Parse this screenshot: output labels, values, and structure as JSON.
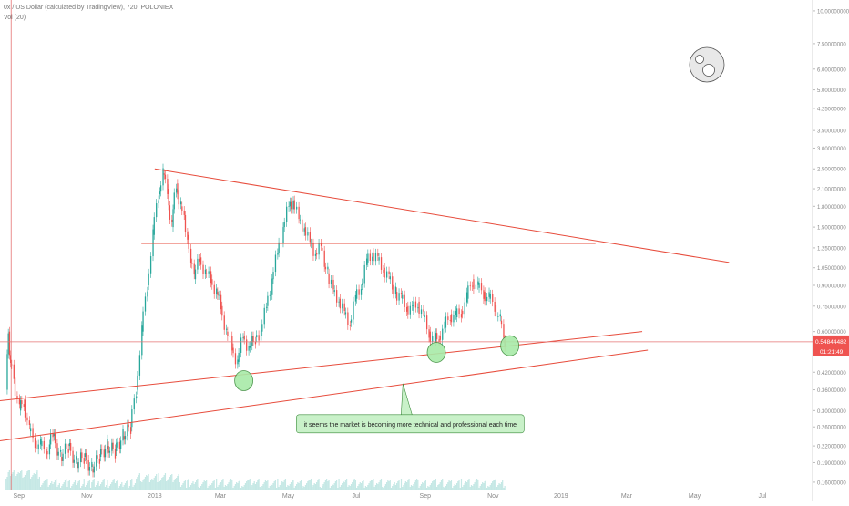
{
  "chart_data": {
    "type": "candlestick",
    "legend": {
      "symbol_line": "0x / US Dollar (calculated by TradingView), 720, POLONIEX",
      "volume_line": "Vol (20)"
    },
    "y_scale": "log",
    "ylim": [
      0.15,
      11
    ],
    "xlim": [
      "2017-08-15",
      "2019-08-15"
    ],
    "x_tick_labels": [
      {
        "date": "2017-09-01",
        "label": "Sep"
      },
      {
        "date": "2017-11-01",
        "label": "Nov"
      },
      {
        "date": "2018-01-01",
        "label": "2018"
      },
      {
        "date": "2018-03-01",
        "label": "Mar"
      },
      {
        "date": "2018-05-01",
        "label": "May"
      },
      {
        "date": "2018-07-01",
        "label": "Jul"
      },
      {
        "date": "2018-09-01",
        "label": "Sep"
      },
      {
        "date": "2018-11-01",
        "label": "Nov"
      },
      {
        "date": "2019-01-01",
        "label": "2019"
      },
      {
        "date": "2019-03-01",
        "label": "Mar"
      },
      {
        "date": "2019-05-01",
        "label": "May"
      },
      {
        "date": "2019-07-01",
        "label": "Jul"
      }
    ],
    "y_tick_labels": [
      {
        "value": 10,
        "label": "10.00000000"
      },
      {
        "value": 7.5,
        "label": "7.50000000"
      },
      {
        "value": 6,
        "label": "6.00000000"
      },
      {
        "value": 5,
        "label": "5.00000000"
      },
      {
        "value": 4.25,
        "label": "4.25000000"
      },
      {
        "value": 3.5,
        "label": "3.50000000"
      },
      {
        "value": 3,
        "label": "3.00000000"
      },
      {
        "value": 2.5,
        "label": "2.50000000"
      },
      {
        "value": 2.1,
        "label": "2.10000000"
      },
      {
        "value": 1.8,
        "label": "1.80000000"
      },
      {
        "value": 1.5,
        "label": "1.50000000"
      },
      {
        "value": 1.25,
        "label": "1.25000000"
      },
      {
        "value": 1.05,
        "label": "1.05000000"
      },
      {
        "value": 0.9,
        "label": "0.90000000"
      },
      {
        "value": 0.75,
        "label": "0.75000000"
      },
      {
        "value": 0.6,
        "label": "0.60000000"
      },
      {
        "value": 0.42,
        "label": "0.42000000"
      },
      {
        "value": 0.36,
        "label": "0.36000000"
      },
      {
        "value": 0.3,
        "label": "0.30000000"
      },
      {
        "value": 0.26,
        "label": "0.26000000"
      },
      {
        "value": 0.22,
        "label": "0.22000000"
      },
      {
        "value": 0.19,
        "label": "0.19000000"
      },
      {
        "value": 0.16,
        "label": "0.16000000"
      }
    ],
    "last_price": {
      "value": 0.54844482,
      "label": "0.54844482",
      "countdown": "01:21:49"
    },
    "crosshair": {
      "date": "2017-08-25",
      "price": 0.54844482
    },
    "price_path": [
      [
        "2017-08-20",
        0.36
      ],
      [
        "2017-08-22",
        0.6
      ],
      [
        "2017-08-24",
        0.45
      ],
      [
        "2017-08-27",
        0.4
      ],
      [
        "2017-09-01",
        0.3
      ],
      [
        "2017-09-05",
        0.33
      ],
      [
        "2017-09-10",
        0.25
      ],
      [
        "2017-09-15",
        0.23
      ],
      [
        "2017-09-20",
        0.22
      ],
      [
        "2017-09-25",
        0.21
      ],
      [
        "2017-10-01",
        0.24
      ],
      [
        "2017-10-08",
        0.2
      ],
      [
        "2017-10-15",
        0.22
      ],
      [
        "2017-10-22",
        0.19
      ],
      [
        "2017-10-29",
        0.2
      ],
      [
        "2017-11-05",
        0.18
      ],
      [
        "2017-11-12",
        0.2
      ],
      [
        "2017-11-19",
        0.22
      ],
      [
        "2017-11-26",
        0.21
      ],
      [
        "2017-12-03",
        0.24
      ],
      [
        "2017-12-10",
        0.26
      ],
      [
        "2017-12-15",
        0.36
      ],
      [
        "2017-12-20",
        0.6
      ],
      [
        "2017-12-25",
        0.9
      ],
      [
        "2017-12-30",
        1.4
      ],
      [
        "2018-01-04",
        2.0
      ],
      [
        "2018-01-08",
        2.4
      ],
      [
        "2018-01-12",
        2.1
      ],
      [
        "2018-01-16",
        1.5
      ],
      [
        "2018-01-20",
        2.2
      ],
      [
        "2018-01-24",
        1.8
      ],
      [
        "2018-01-30",
        1.4
      ],
      [
        "2018-02-05",
        0.95
      ],
      [
        "2018-02-10",
        1.15
      ],
      [
        "2018-02-15",
        1.0
      ],
      [
        "2018-02-20",
        0.95
      ],
      [
        "2018-02-25",
        0.85
      ],
      [
        "2018-03-01",
        0.75
      ],
      [
        "2018-03-06",
        0.6
      ],
      [
        "2018-03-11",
        0.52
      ],
      [
        "2018-03-16",
        0.46
      ],
      [
        "2018-03-21",
        0.58
      ],
      [
        "2018-03-26",
        0.52
      ],
      [
        "2018-04-01",
        0.57
      ],
      [
        "2018-04-06",
        0.6
      ],
      [
        "2018-04-11",
        0.75
      ],
      [
        "2018-04-16",
        0.95
      ],
      [
        "2018-04-21",
        1.2
      ],
      [
        "2018-04-26",
        1.5
      ],
      [
        "2018-05-01",
        1.8
      ],
      [
        "2018-05-05",
        1.9
      ],
      [
        "2018-05-10",
        1.6
      ],
      [
        "2018-05-15",
        1.5
      ],
      [
        "2018-05-20",
        1.3
      ],
      [
        "2018-05-25",
        1.2
      ],
      [
        "2018-05-30",
        1.25
      ],
      [
        "2018-06-05",
        1.0
      ],
      [
        "2018-06-10",
        0.85
      ],
      [
        "2018-06-15",
        0.8
      ],
      [
        "2018-06-20",
        0.7
      ],
      [
        "2018-06-25",
        0.65
      ],
      [
        "2018-06-30",
        0.8
      ],
      [
        "2018-07-05",
        0.9
      ],
      [
        "2018-07-10",
        1.1
      ],
      [
        "2018-07-15",
        1.2
      ],
      [
        "2018-07-20",
        1.12
      ],
      [
        "2018-07-25",
        1.05
      ],
      [
        "2018-07-30",
        0.95
      ],
      [
        "2018-08-05",
        0.85
      ],
      [
        "2018-08-10",
        0.8
      ],
      [
        "2018-08-15",
        0.75
      ],
      [
        "2018-08-20",
        0.72
      ],
      [
        "2018-08-25",
        0.78
      ],
      [
        "2018-08-30",
        0.68
      ],
      [
        "2018-09-04",
        0.6
      ],
      [
        "2018-09-09",
        0.55
      ],
      [
        "2018-09-13",
        0.58
      ],
      [
        "2018-09-18",
        0.62
      ],
      [
        "2018-09-23",
        0.7
      ],
      [
        "2018-09-28",
        0.68
      ],
      [
        "2018-10-03",
        0.72
      ],
      [
        "2018-10-08",
        0.8
      ],
      [
        "2018-10-13",
        0.95
      ],
      [
        "2018-10-18",
        0.88
      ],
      [
        "2018-10-23",
        0.85
      ],
      [
        "2018-10-28",
        0.8
      ],
      [
        "2018-11-02",
        0.76
      ],
      [
        "2018-11-07",
        0.66
      ],
      [
        "2018-11-10",
        0.56
      ],
      [
        "2018-11-12",
        0.55
      ]
    ],
    "annotations": {
      "upper_trendline": [
        [
          "2018-01-01",
          2.5
        ],
        [
          "2019-06-01",
          1.1
        ]
      ],
      "horizontal_segment": [
        [
          "2017-12-20",
          1.3
        ],
        [
          "2019-02-01",
          1.3
        ]
      ],
      "support_line_upper": [
        [
          "2017-06-25",
          0.31
        ],
        [
          "2019-03-15",
          0.6
        ]
      ],
      "support_line_lower": [
        [
          "2017-08-15",
          0.23
        ],
        [
          "2019-03-20",
          0.51
        ]
      ],
      "markers": [
        {
          "date": "2018-03-22",
          "price": 0.39
        },
        {
          "date": "2018-09-11",
          "price": 0.5
        },
        {
          "date": "2018-11-16",
          "price": 0.53
        }
      ],
      "callout_text": "it seems the market is becoming more technical and professional each time",
      "callout_anchor": {
        "date": "2018-08-12",
        "price": 0.38
      }
    },
    "colors": {
      "up": "#26a69a",
      "down": "#ef5350",
      "trendline": "#e74c3c",
      "marker_fill": "#a8eaa8",
      "marker_stroke": "#3b8c3b",
      "callout_fill": "#c9f1c9",
      "price_badge": "#ef5350"
    }
  }
}
